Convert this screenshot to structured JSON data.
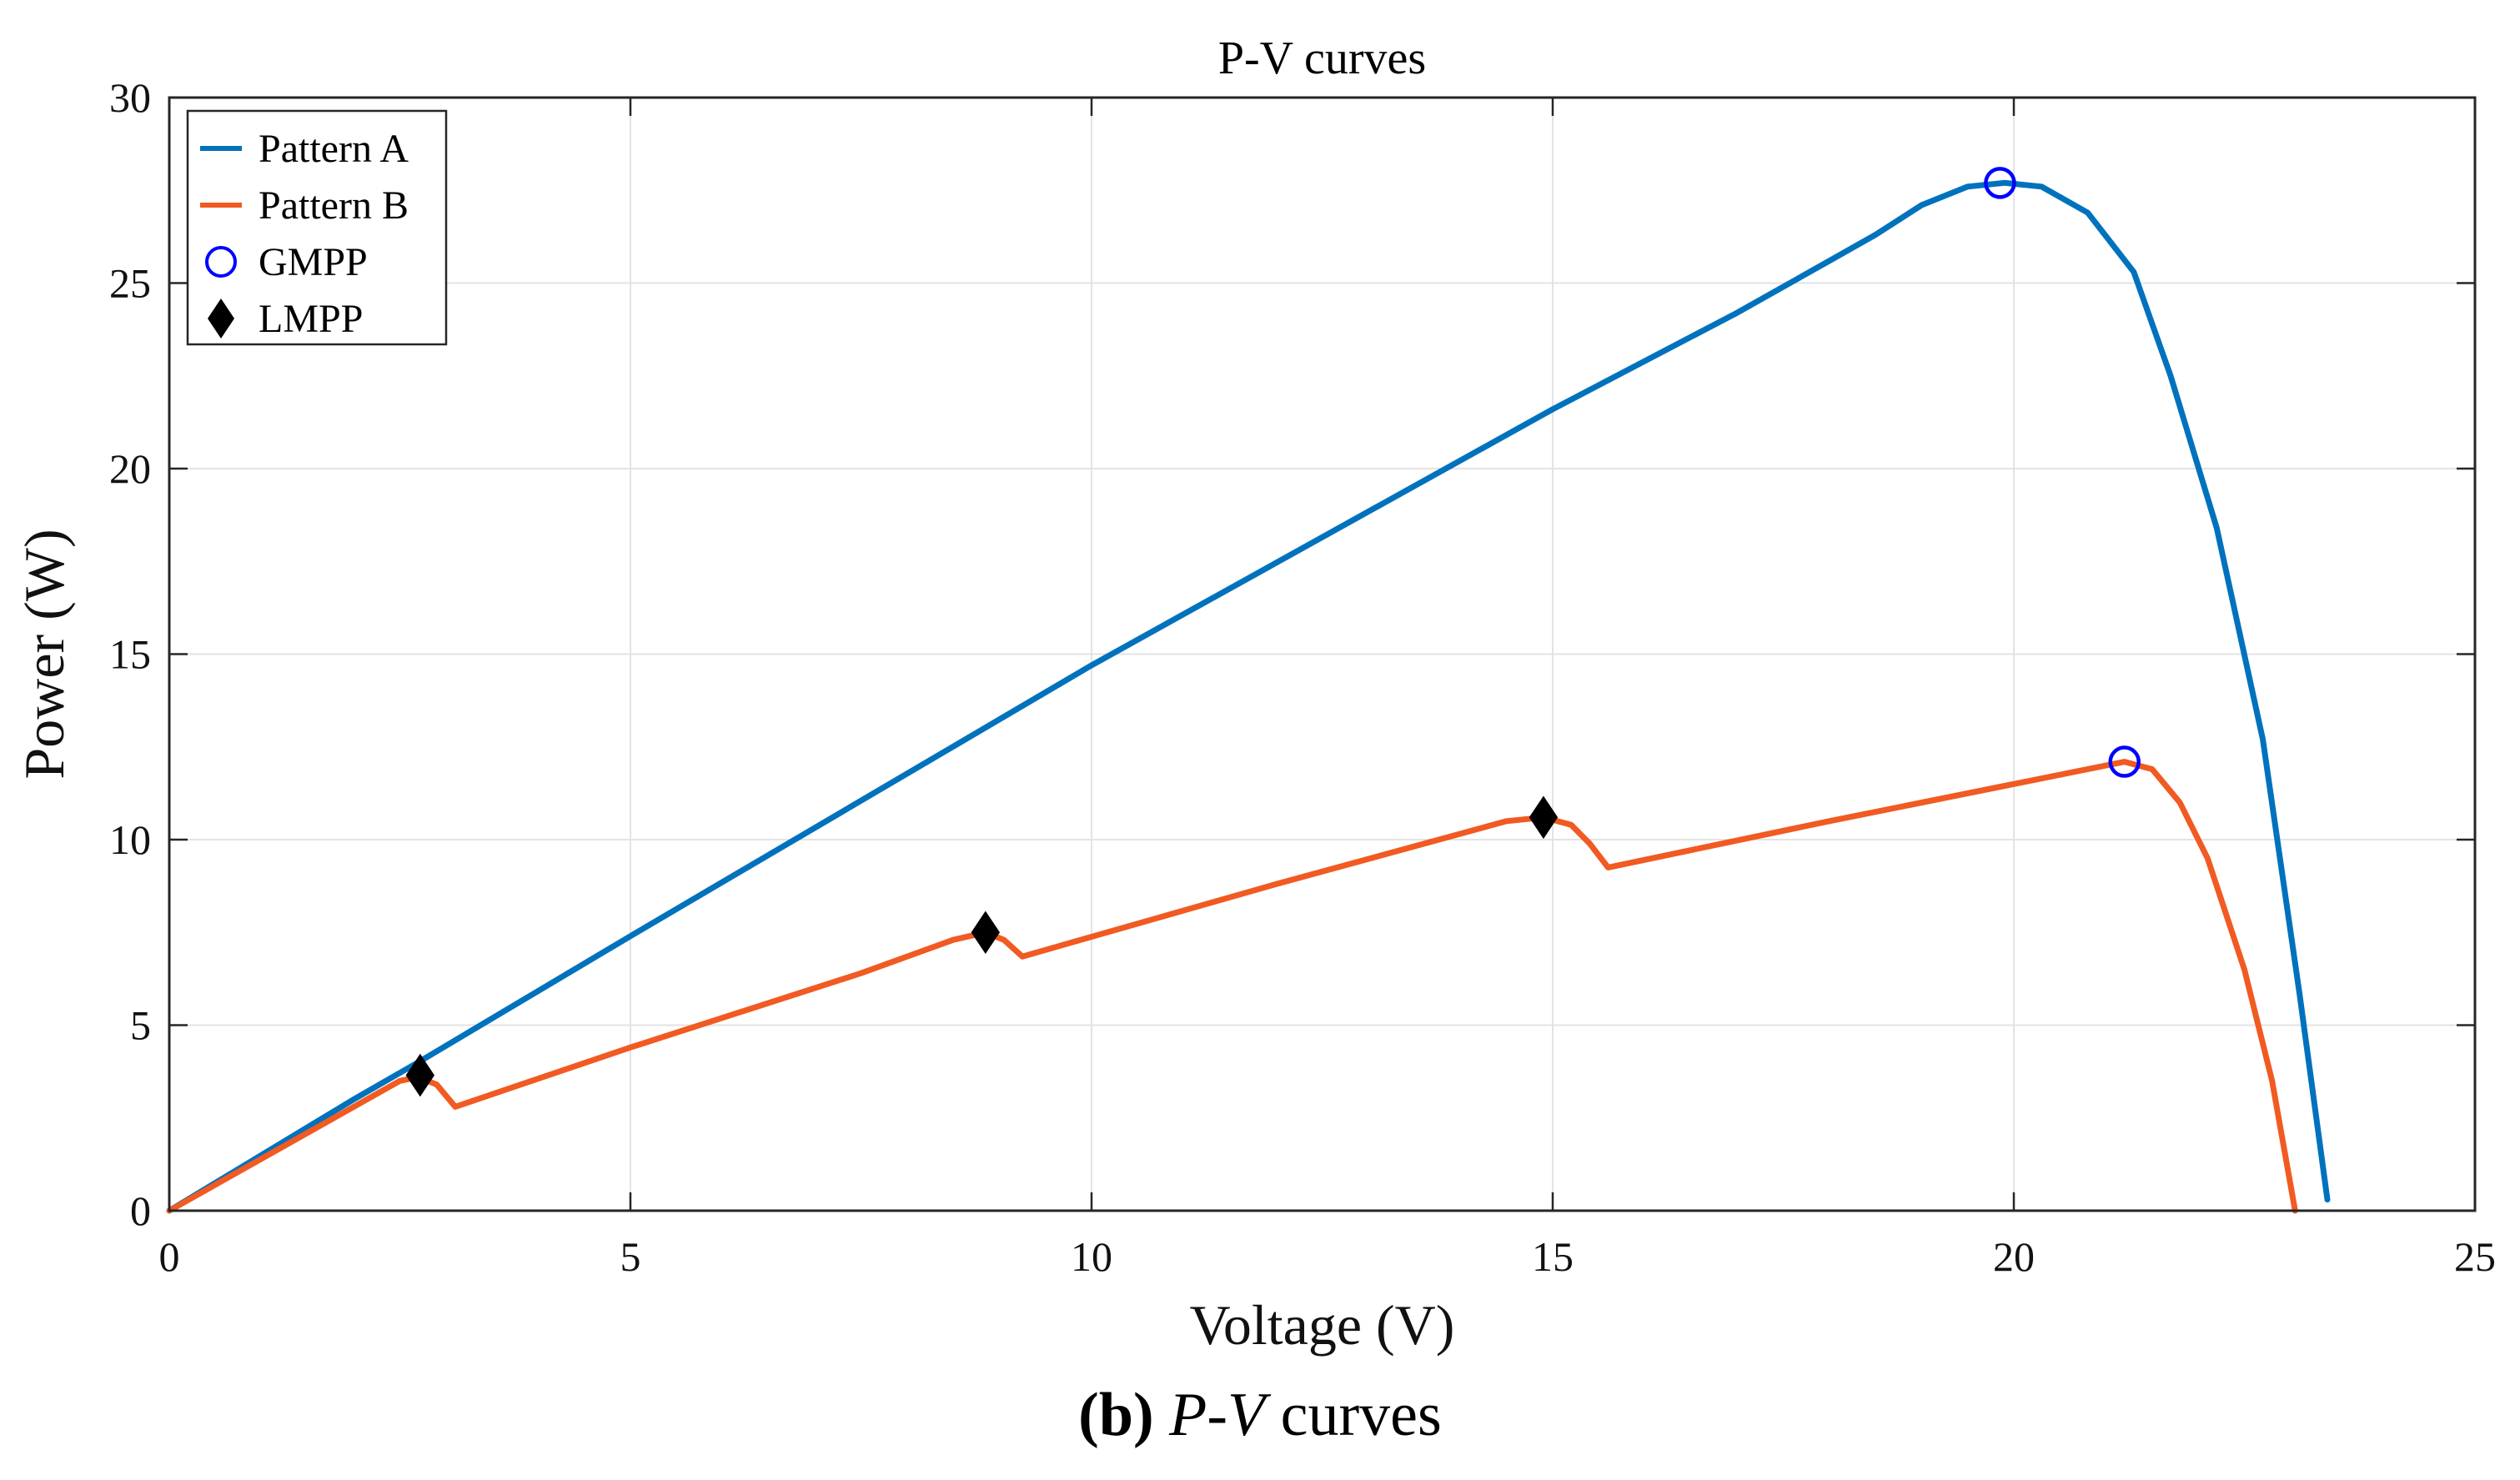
{
  "chart_data": {
    "type": "line",
    "title": "P-V curves",
    "xlabel": "Voltage (V)",
    "ylabel": "Power (W)",
    "xlim": [
      0,
      25
    ],
    "ylim": [
      0,
      30
    ],
    "xticks": [
      0,
      5,
      10,
      15,
      20,
      25
    ],
    "yticks": [
      0,
      5,
      10,
      15,
      20,
      25,
      30
    ],
    "grid": true,
    "legend_position": "top-left",
    "series": [
      {
        "name": "Pattern A",
        "color": "#0072BD",
        "x": [
          0,
          1,
          2,
          2.7,
          5,
          10,
          15,
          17,
          18,
          18.5,
          19,
          19.5,
          19.9,
          20.3,
          20.8,
          21.3,
          21.7,
          22.2,
          22.7,
          23.1,
          23.4
        ],
        "y": [
          0,
          1.5,
          3,
          4,
          7.4,
          14.7,
          21.6,
          24.2,
          25.6,
          26.3,
          27.1,
          27.6,
          27.7,
          27.6,
          26.9,
          25.3,
          22.5,
          18.4,
          12.7,
          5.8,
          0.3
        ]
      },
      {
        "name": "Pattern B",
        "color": "#F15A22",
        "x": [
          0,
          1,
          2,
          2.5,
          2.7,
          2.9,
          3.1,
          5,
          7.5,
          8.5,
          8.85,
          9.05,
          9.25,
          12,
          14.5,
          14.9,
          15.2,
          15.4,
          15.6,
          18,
          20,
          21.2,
          21.5,
          21.8,
          22.1,
          22.5,
          22.8,
          23.05
        ],
        "y": [
          0,
          1.4,
          2.8,
          3.5,
          3.6,
          3.4,
          2.8,
          4.4,
          6.4,
          7.3,
          7.5,
          7.3,
          6.85,
          8.8,
          10.5,
          10.6,
          10.4,
          9.9,
          9.25,
          10.5,
          11.5,
          12.1,
          11.9,
          11.0,
          9.5,
          6.5,
          3.5,
          0
        ]
      }
    ],
    "markers": [
      {
        "name": "GMPP",
        "symbol": "circle",
        "color": "#0000FF",
        "points": [
          {
            "x": 19.85,
            "y": 27.7
          },
          {
            "x": 21.2,
            "y": 12.1
          }
        ]
      },
      {
        "name": "LMPP",
        "symbol": "diamond",
        "color": "#000000",
        "points": [
          {
            "x": 2.72,
            "y": 3.65
          },
          {
            "x": 8.85,
            "y": 7.5
          },
          {
            "x": 14.9,
            "y": 10.6
          }
        ]
      }
    ],
    "legend": [
      "Pattern A",
      "Pattern B",
      "GMPP",
      "LMPP"
    ]
  },
  "caption": {
    "label": "(b)",
    "italic_text": "P-V",
    "text": " curves"
  }
}
